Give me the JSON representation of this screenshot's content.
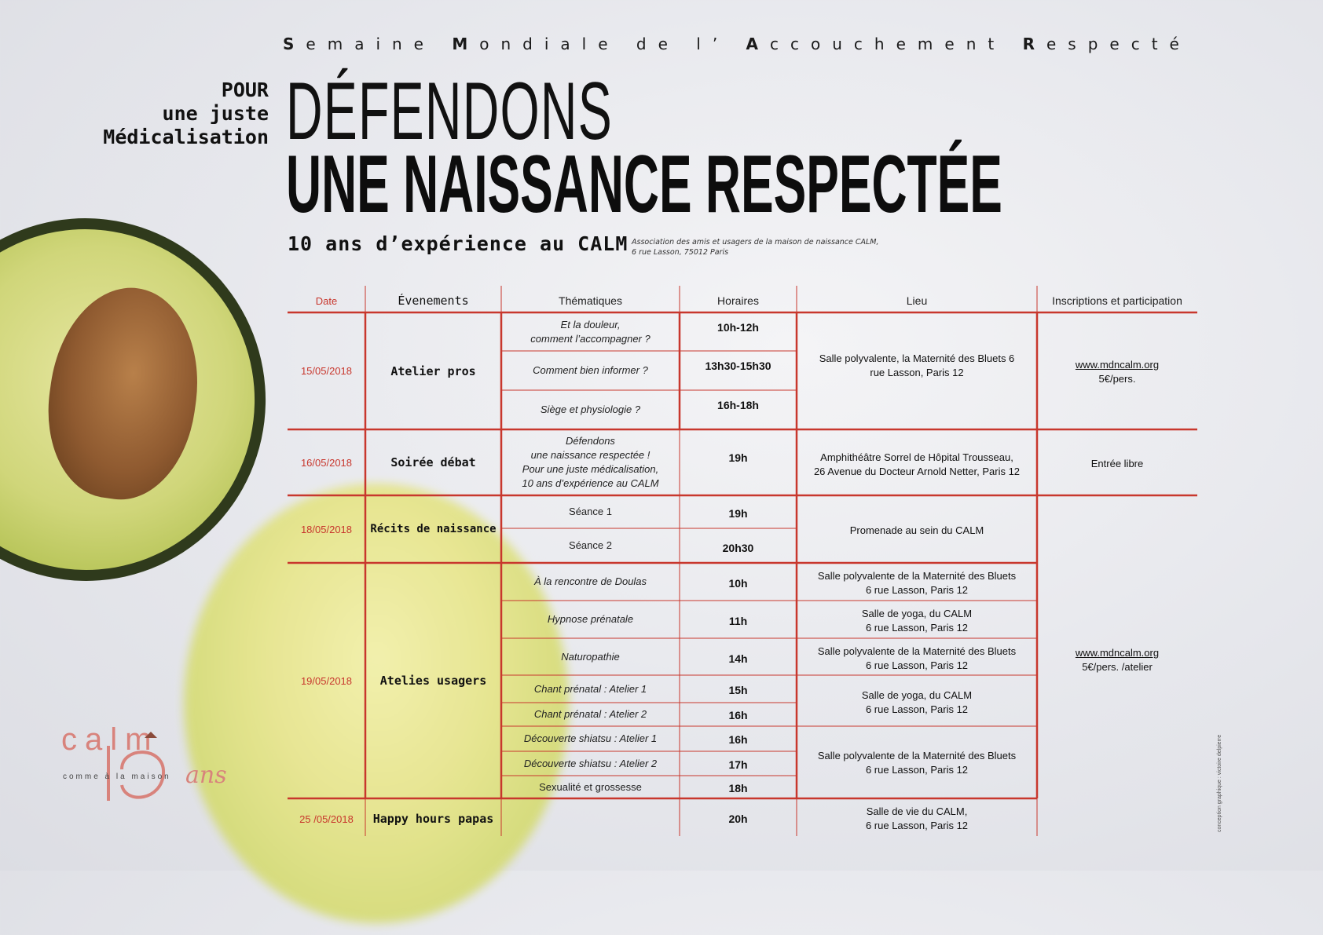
{
  "header": {
    "week_parts": [
      {
        "initial": "S",
        "rest": "emaine"
      },
      {
        "initial": "M",
        "rest": "ondiale"
      },
      {
        "initial": "",
        "rest": "de"
      },
      {
        "initial": "",
        "rest": "l’"
      },
      {
        "initial": "A",
        "rest": "ccouchement"
      },
      {
        "initial": "R",
        "rest": "especté"
      }
    ],
    "pour_lines": [
      "POUR",
      "une juste",
      "Médicalisation"
    ],
    "title_line1": "DÉFENDONS",
    "title_line2": "UNE NAISSANCE RESPECTÉE",
    "subtitle": "10 ans d’expérience au CALM",
    "association_line1": "Association des amis et usagers de la maison de naissance CALM,",
    "association_line2": "6 rue Lasson, 75012 Paris"
  },
  "table": {
    "headers": {
      "date": "Date",
      "evenements": "Évenements",
      "thematiques": "Thématiques",
      "horaires": "Horaires",
      "lieu": "Lieu",
      "inscriptions": "Inscriptions et participation"
    },
    "dates": [
      "15/05/2018",
      "16/05/2018",
      "18/05/2018",
      "19/05/2018",
      "25 /05/2018"
    ],
    "events": [
      "Atelier pros",
      "Soirée débat",
      "Récits de naissance",
      "Atelies usagers",
      "Happy hours papas"
    ],
    "thematiques": [
      [
        "Et la douleur,",
        "comment l’accompagner ?"
      ],
      [
        "Comment bien informer ?"
      ],
      [
        "Siège et physiologie ?"
      ],
      [
        "Défendons",
        "une naissance respectée !",
        "Pour une juste médicalisation,",
        "10 ans d’expérience au CALM"
      ],
      [
        "Séance 1"
      ],
      [
        "Séance 2"
      ],
      [
        "À la rencontre de Doulas"
      ],
      [
        "Hypnose prénatale"
      ],
      [
        "Naturopathie"
      ],
      [
        "Chant prénatal : Atelier 1"
      ],
      [
        "Chant prénatal : Atelier 2"
      ],
      [
        "Découverte shiatsu : Atelier 1"
      ],
      [
        "Découverte shiatsu : Atelier 2"
      ],
      [
        "Sexualité et grossesse"
      ]
    ],
    "horaires": [
      "10h-12h",
      "13h30-15h30",
      "16h-18h",
      "19h",
      "19h",
      "20h30",
      "10h",
      "11h",
      "14h",
      "15h",
      "16h",
      "16h",
      "17h",
      "18h",
      "20h"
    ],
    "lieux": [
      [
        "Salle polyvalente, la Maternité des Bluets 6",
        "rue Lasson, Paris 12"
      ],
      [
        "Amphithéâtre Sorrel de Hôpital Trousseau,",
        "26 Avenue du Docteur Arnold Netter, Paris 12"
      ],
      [
        "Promenade au sein du CALM"
      ],
      [
        "Salle polyvalente de la Maternité des Bluets",
        "6 rue Lasson, Paris 12"
      ],
      [
        "Salle de yoga, du CALM",
        "6 rue Lasson, Paris 12"
      ],
      [
        "Salle polyvalente de la Maternité des Bluets",
        "6 rue Lasson, Paris 12"
      ],
      [
        "Salle de yoga, du CALM",
        "6 rue Lasson, Paris 12"
      ],
      [
        "Salle polyvalente de la Maternité des Bluets",
        "6 rue Lasson, Paris 12"
      ],
      [
        "Salle de vie du CALM,",
        "6 rue Lasson, Paris 12"
      ]
    ],
    "inscriptions": [
      {
        "link": "www.mdncalm.org",
        "text": "5€/pers."
      },
      {
        "link": "",
        "text": "Entrée libre"
      },
      {
        "link": "www.mdncalm.org",
        "text": "5€/pers. /atelier"
      }
    ]
  },
  "logo": {
    "word": "calm",
    "sub": "comme à la maison",
    "ans": "ans"
  },
  "credit": "conception graphique : victoire delpierre",
  "colors": {
    "accent_red": "#c8372d",
    "text": "#111111",
    "avocado_skin": "#2f3a1c"
  }
}
